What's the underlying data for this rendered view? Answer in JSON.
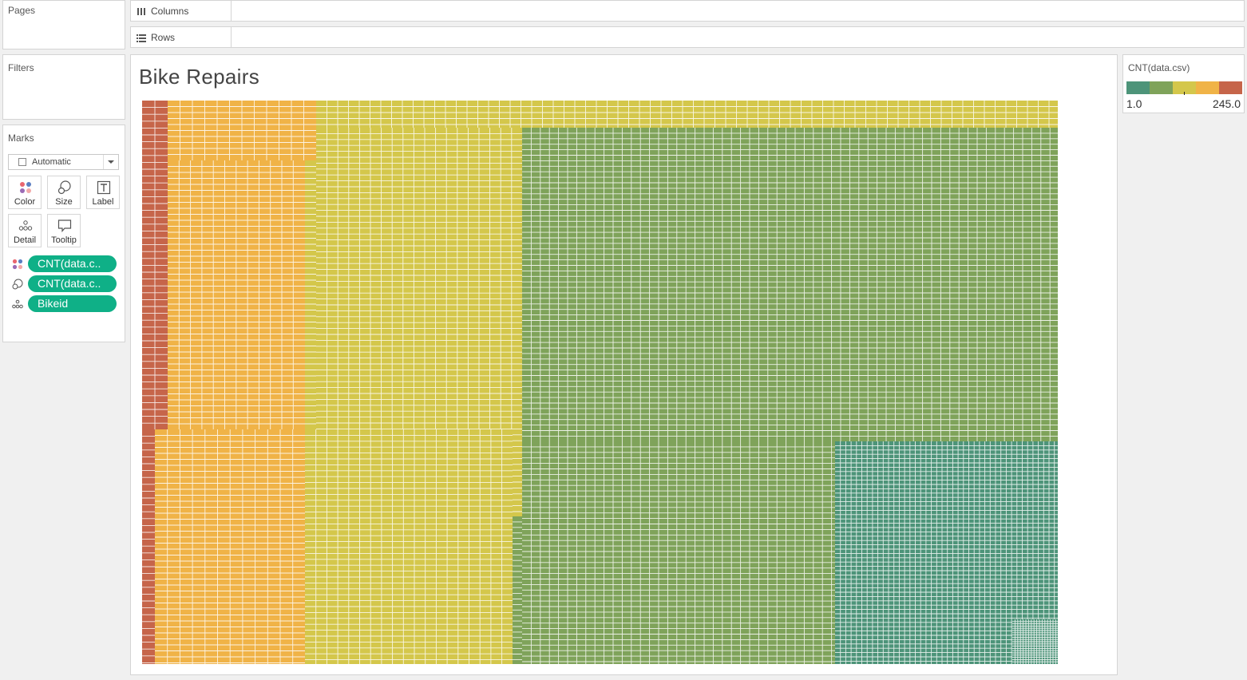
{
  "shelves": {
    "columns_label": "Columns",
    "rows_label": "Rows"
  },
  "cards": {
    "pages_title": "Pages",
    "filters_title": "Filters",
    "marks_title": "Marks"
  },
  "marks": {
    "mark_type": "Automatic",
    "buttons": [
      {
        "label": "Color",
        "icon": "color-dots-icon"
      },
      {
        "label": "Size",
        "icon": "size-circles-icon"
      },
      {
        "label": "Label",
        "icon": "text-label-icon"
      },
      {
        "label": "Detail",
        "icon": "detail-dots-icon"
      },
      {
        "label": "Tooltip",
        "icon": "tooltip-bubble-icon"
      }
    ],
    "pills": [
      {
        "label": "CNT(data.c..",
        "icon": "color-dots-icon"
      },
      {
        "label": "CNT(data.c..",
        "icon": "size-circles-icon"
      },
      {
        "label": "Bikeid",
        "icon": "detail-dots-icon"
      }
    ]
  },
  "legend": {
    "title": "CNT(data.csv)",
    "min_label": "1.0",
    "max_label": "245.0",
    "colors": [
      "#4d9479",
      "#7fa35a",
      "#d4c74b",
      "#f0b347",
      "#c6654a"
    ]
  },
  "viz": {
    "title": "Bike Repairs"
  },
  "chart_data": {
    "type": "treemap",
    "measure": "CNT(data.csv)",
    "detail": "Bikeid",
    "color_range": [
      1.0,
      245.0
    ],
    "color_bands": [
      {
        "color": "#c6654a",
        "approx_count": 2
      },
      {
        "color": "#f0b347",
        "approx_count": 3
      },
      {
        "color": "#d4c74b",
        "approx_count": 4
      },
      {
        "color": "#7fa35a",
        "approx_count": 5
      },
      {
        "color": "#4d9479",
        "approx_count": 3
      }
    ]
  }
}
